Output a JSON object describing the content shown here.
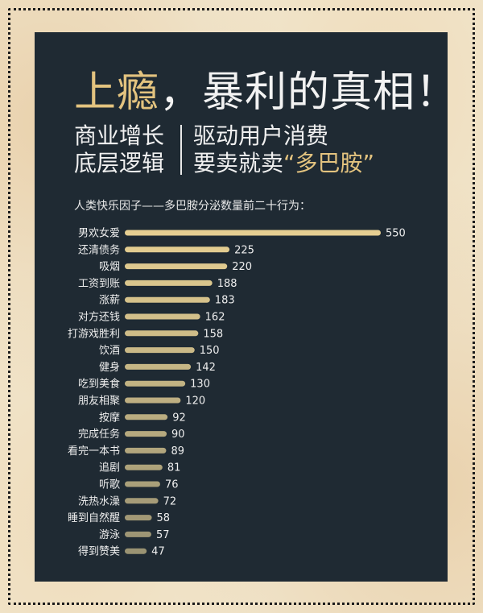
{
  "title_prefix": "上瘾",
  "title_rest": "，暴利的真相！",
  "subtitle": {
    "left_line1": "商业增长",
    "left_line2": "底层逻辑",
    "right_line1": "驱动用户消费",
    "right_line2_prefix": "要卖就卖",
    "right_line2_quote": "“多巴胺”"
  },
  "chart_data": {
    "type": "bar",
    "orientation": "horizontal",
    "title": "人类快乐因子——多巴胺分泌数量前二十行为：",
    "categories": [
      "男欢女爱",
      "还清债务",
      "吸烟",
      "工资到账",
      "涨薪",
      "对方还钱",
      "打游戏胜利",
      "饮酒",
      "健身",
      "吃到美食",
      "朋友相聚",
      "按摩",
      "完成任务",
      "看完一本书",
      "追剧",
      "听歌",
      "洗热水澡",
      "睡到自然醒",
      "游泳",
      "得到赞美"
    ],
    "values": [
      550,
      225,
      220,
      188,
      183,
      162,
      158,
      150,
      142,
      130,
      120,
      92,
      90,
      89,
      81,
      76,
      72,
      58,
      57,
      47
    ],
    "xlim": [
      0,
      550
    ],
    "grid": false,
    "colors": {
      "bar_start": "#e6cf92",
      "bar_end": "#9a9373"
    }
  }
}
